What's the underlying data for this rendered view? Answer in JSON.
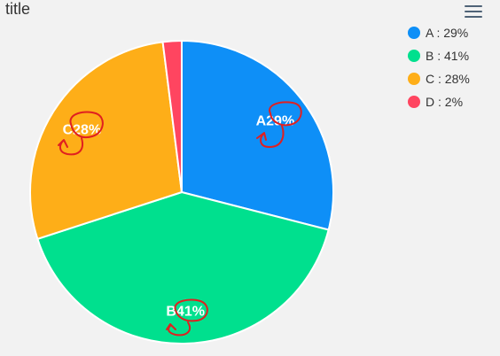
{
  "title": "title",
  "menu_icon": "hamburger-menu-icon",
  "chart_data": {
    "type": "pie",
    "title": "title",
    "categories": [
      "A",
      "B",
      "C",
      "D"
    ],
    "values": [
      29,
      41,
      28,
      2
    ],
    "colors": [
      "#0e8ff7",
      "#00e08e",
      "#feae18",
      "#ff4560"
    ],
    "slice_labels": [
      "A29%",
      "B41%",
      "C28%",
      ""
    ],
    "legend": {
      "placement": "top-right",
      "entries": [
        "A : 29%",
        "B : 41%",
        "C : 28%",
        "D : 2%"
      ]
    },
    "annotations": "red hand-drawn circles with arrows over slice labels"
  }
}
